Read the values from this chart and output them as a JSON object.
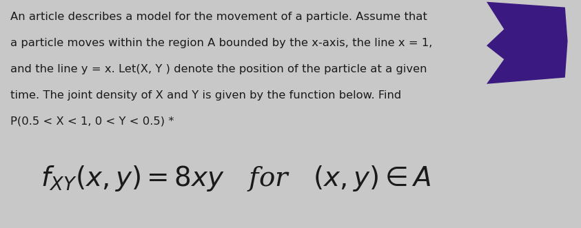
{
  "background_color": "#c8c8c8",
  "body_text_lines": [
    "An article describes a model for the movement of a particle. Assume that",
    "a particle moves within the region A bounded by the x-axis, the line x = 1,",
    "and the line y = x. Let(X, Y ) denote the position of the particle at a given",
    "time. The joint density of X and Y is given by the function below. Find",
    "P(0.5 < X < 1, 0 < Y < 0.5) *"
  ],
  "formula": "$f_{XY}(x, y) = 8xy$   for   $(x, y) \\in A$",
  "body_fontsize": 11.8,
  "formula_fontsize": 28,
  "body_color": "#1a1a1a",
  "formula_color": "#1a1a1a",
  "arrow_color": "#3a1a80",
  "fig_width": 8.43,
  "fig_height": 3.31,
  "dpi": 100
}
